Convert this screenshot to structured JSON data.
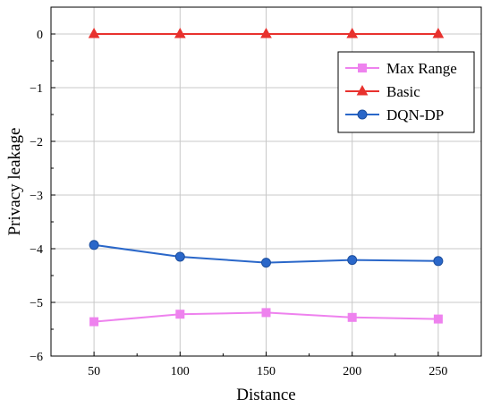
{
  "chart_data": {
    "type": "line",
    "title": "",
    "xlabel": "Distance",
    "ylabel": "Privacy leakage",
    "x": [
      50,
      100,
      150,
      200,
      250
    ],
    "xlim": [
      25,
      275
    ],
    "ylim": [
      -6,
      0.5
    ],
    "xticks": [
      50,
      100,
      150,
      200,
      250
    ],
    "yticks": [
      0,
      -1,
      -2,
      -3,
      -4,
      -5,
      -6
    ],
    "ytick_labels": [
      "0",
      "−1",
      "−2",
      "−3",
      "−4",
      "−5",
      "−6"
    ],
    "grid": true,
    "legend_position": "top-right",
    "series": [
      {
        "name": "Max Range",
        "marker": "square",
        "color": "#EE82EE",
        "values": [
          -5.36,
          -5.22,
          -5.19,
          -5.28,
          -5.31
        ]
      },
      {
        "name": "Basic",
        "marker": "triangle",
        "color": "#E8322E",
        "values": [
          0,
          0,
          0,
          0,
          0
        ]
      },
      {
        "name": "DQN-DP",
        "marker": "circle",
        "color": "#2A67C9",
        "values": [
          -3.93,
          -4.15,
          -4.26,
          -4.21,
          -4.23
        ]
      }
    ]
  }
}
